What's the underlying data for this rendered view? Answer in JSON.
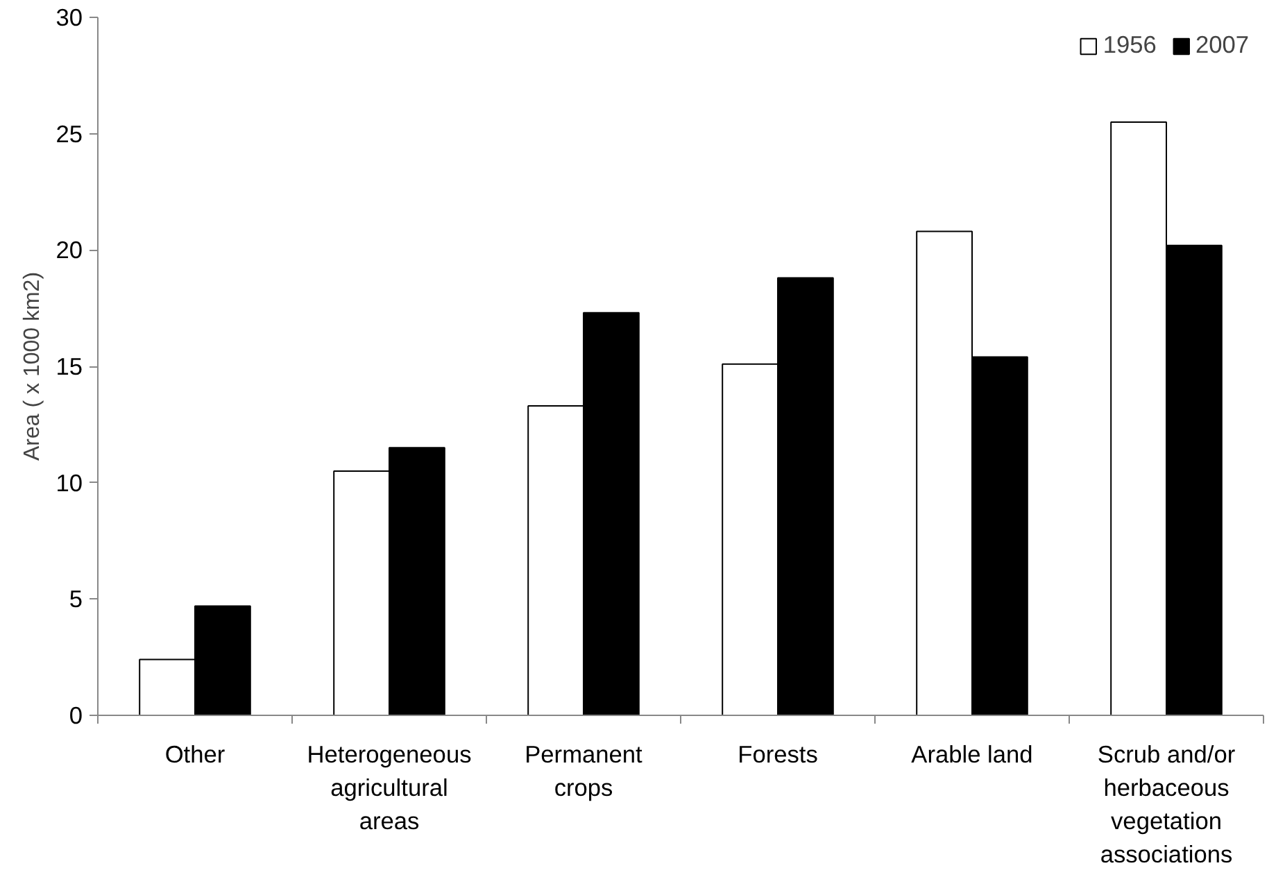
{
  "chart_data": {
    "type": "bar",
    "ylabel": "Area ( x 1000 km2)",
    "categories": [
      "Other",
      "Heterogeneous agricultural areas",
      "Permanent crops",
      "Forests",
      "Arable land",
      "Scrub and/or herbaceous vegetation associations"
    ],
    "series": [
      {
        "name": "1956",
        "color": "#ffffff",
        "values": [
          2.4,
          10.5,
          13.3,
          15.1,
          20.8,
          25.5
        ]
      },
      {
        "name": "2007",
        "color": "#000000",
        "values": [
          4.7,
          11.5,
          17.3,
          18.8,
          15.4,
          20.2
        ]
      }
    ],
    "ylim": [
      0,
      30
    ],
    "yticks": [
      0,
      5,
      10,
      15,
      20,
      25,
      30
    ],
    "grid": false,
    "legend": "top right"
  }
}
